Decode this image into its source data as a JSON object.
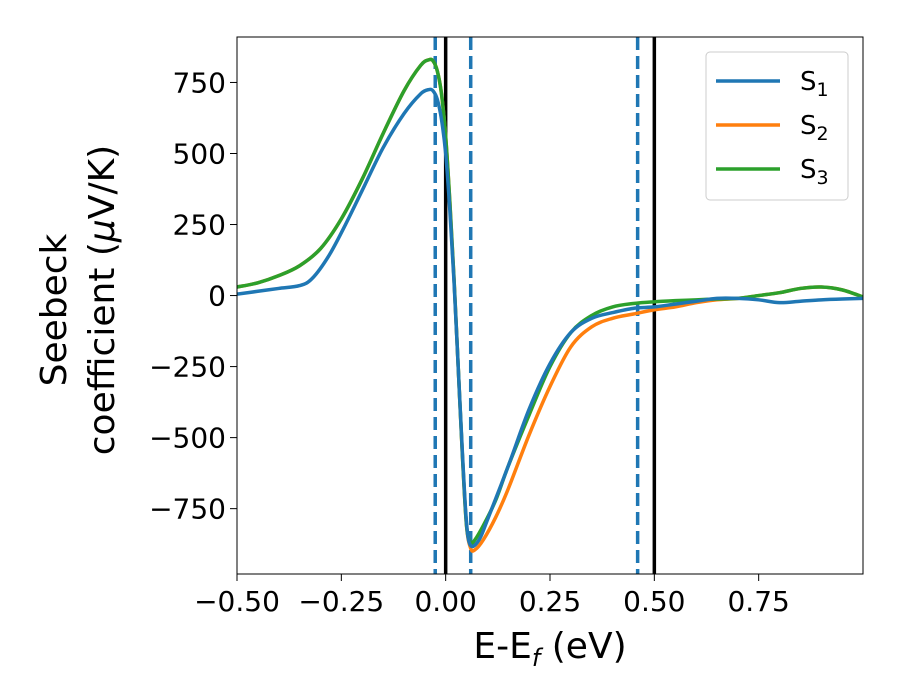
{
  "chart_data": {
    "type": "line",
    "xlabel": "E-E",
    "xlabel_sub": "f",
    "xlabel_unit": " (eV)",
    "ylabel_line1": "Seebeck",
    "ylabel_line2": "coefficient  (",
    "ylabel_mu": "μ",
    "ylabel_unit": "V/K)",
    "xlim": [
      -0.5,
      1.0
    ],
    "ylim": [
      -980,
      910
    ],
    "xticks": [
      -0.5,
      -0.25,
      0.0,
      0.25,
      0.5,
      0.75
    ],
    "xtick_labels": [
      "−0.50",
      "−0.25",
      "0.00",
      "0.25",
      "0.50",
      "0.75"
    ],
    "yticks": [
      750,
      500,
      250,
      0,
      -250,
      -500,
      -750
    ],
    "ytick_labels": [
      "750",
      "500",
      "250",
      "0",
      "−250",
      "−500",
      "−750"
    ],
    "grid": false,
    "legend_position": "top-right",
    "series": [
      {
        "name": "S",
        "name_sub": "1",
        "color": "#1f77b4",
        "x": [
          -0.5,
          -0.45,
          -0.4,
          -0.35,
          -0.32,
          -0.28,
          -0.24,
          -0.2,
          -0.15,
          -0.1,
          -0.06,
          -0.04,
          -0.03,
          -0.02,
          -0.01,
          0.0,
          0.01,
          0.02,
          0.03,
          0.04,
          0.05,
          0.06,
          0.08,
          0.1,
          0.15,
          0.2,
          0.25,
          0.3,
          0.35,
          0.4,
          0.45,
          0.5,
          0.55,
          0.6,
          0.65,
          0.7,
          0.75,
          0.8,
          0.85,
          0.9,
          0.95,
          1.0
        ],
        "y": [
          5,
          15,
          25,
          35,
          60,
          140,
          250,
          370,
          520,
          640,
          710,
          725,
          720,
          690,
          620,
          500,
          300,
          50,
          -250,
          -550,
          -800,
          -880,
          -860,
          -790,
          -600,
          -400,
          -240,
          -130,
          -80,
          -60,
          -45,
          -40,
          -30,
          -20,
          -10,
          -10,
          -15,
          -25,
          -20,
          -15,
          -12,
          -10
        ]
      },
      {
        "name": "S",
        "name_sub": "2",
        "color": "#ff7f0e",
        "x": [
          -0.5,
          -0.45,
          -0.4,
          -0.35,
          -0.3,
          -0.25,
          -0.2,
          -0.15,
          -0.1,
          -0.06,
          -0.04,
          -0.03,
          -0.02,
          -0.01,
          0.0,
          0.01,
          0.02,
          0.03,
          0.04,
          0.05,
          0.06,
          0.07,
          0.09,
          0.12,
          0.15,
          0.2,
          0.25,
          0.3,
          0.35,
          0.4,
          0.45,
          0.5,
          0.55,
          0.6,
          0.65,
          0.7,
          0.75,
          0.8,
          0.85,
          0.9,
          0.95,
          1.0
        ],
        "y": [
          30,
          45,
          70,
          105,
          165,
          270,
          410,
          570,
          720,
          810,
          830,
          825,
          790,
          710,
          560,
          330,
          60,
          -250,
          -560,
          -810,
          -890,
          -895,
          -860,
          -780,
          -680,
          -490,
          -320,
          -180,
          -110,
          -80,
          -65,
          -50,
          -40,
          -25,
          -15,
          -10,
          0,
          10,
          25,
          30,
          20,
          -5
        ]
      },
      {
        "name": "S",
        "name_sub": "3",
        "color": "#2ca02c",
        "x": [
          -0.5,
          -0.45,
          -0.4,
          -0.35,
          -0.3,
          -0.25,
          -0.2,
          -0.15,
          -0.1,
          -0.06,
          -0.04,
          -0.03,
          -0.02,
          -0.01,
          0.0,
          0.01,
          0.02,
          0.03,
          0.04,
          0.05,
          0.06,
          0.07,
          0.09,
          0.12,
          0.15,
          0.2,
          0.25,
          0.3,
          0.35,
          0.4,
          0.45,
          0.5,
          0.55,
          0.6,
          0.65,
          0.7,
          0.75,
          0.8,
          0.85,
          0.9,
          0.95,
          1.0
        ],
        "y": [
          30,
          45,
          70,
          105,
          165,
          270,
          410,
          570,
          720,
          810,
          830,
          825,
          790,
          710,
          560,
          330,
          60,
          -250,
          -560,
          -810,
          -870,
          -860,
          -810,
          -720,
          -600,
          -420,
          -250,
          -130,
          -70,
          -40,
          -28,
          -22,
          -18,
          -15,
          -12,
          -10,
          0,
          10,
          25,
          30,
          20,
          -5
        ]
      }
    ],
    "vlines": [
      {
        "x": -0.025,
        "style": "dashed",
        "color": "#1f77b4"
      },
      {
        "x": 0.0,
        "style": "solid",
        "color": "#000000"
      },
      {
        "x": 0.06,
        "style": "dashed",
        "color": "#1f77b4"
      },
      {
        "x": 0.46,
        "style": "dashed",
        "color": "#1f77b4"
      },
      {
        "x": 0.5,
        "style": "solid",
        "color": "#000000"
      }
    ]
  }
}
